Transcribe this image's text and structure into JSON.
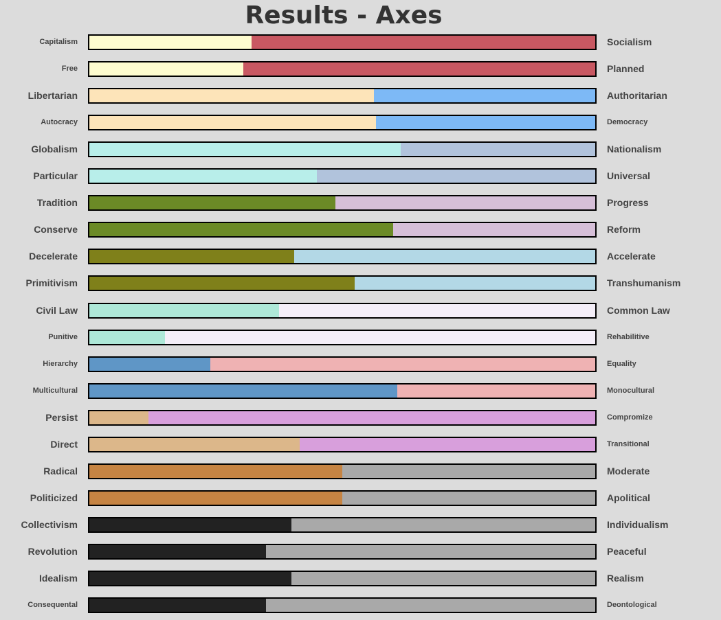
{
  "title": "Results - Axes",
  "chart_data": {
    "type": "bar",
    "orientation": "horizontal-stacked-100",
    "title": "Results - Axes",
    "axes": [
      {
        "left": "Capitalism",
        "right": "Socialism",
        "left_value": 0.32,
        "left_color": "#fefccf",
        "right_color": "#c85862"
      },
      {
        "left": "Free",
        "right": "Planned",
        "left_value": 0.305,
        "left_color": "#fefccf",
        "right_color": "#c85862"
      },
      {
        "left": "Libertarian",
        "right": "Authoritarian",
        "left_value": 0.563,
        "left_color": "#fde4b9",
        "right_color": "#7db9f6"
      },
      {
        "left": "Autocracy",
        "right": "Democracy",
        "left_value": 0.567,
        "left_color": "#fde4b9",
        "right_color": "#7db9f6"
      },
      {
        "left": "Globalism",
        "right": "Nationalism",
        "left_value": 0.615,
        "left_color": "#b8eeea",
        "right_color": "#b1c3dc"
      },
      {
        "left": "Particular",
        "right": "Universal",
        "left_value": 0.45,
        "left_color": "#b8eeea",
        "right_color": "#b1c3dc"
      },
      {
        "left": "Tradition",
        "right": "Progress",
        "left_value": 0.486,
        "left_color": "#6b8a26",
        "right_color": "#d6bfd8"
      },
      {
        "left": "Conserve",
        "right": "Reform",
        "left_value": 0.6,
        "left_color": "#6b8a26",
        "right_color": "#d6bfd8"
      },
      {
        "left": "Decelerate",
        "right": "Accelerate",
        "left_value": 0.405,
        "left_color": "#7f801a",
        "right_color": "#b3d8e6"
      },
      {
        "left": "Primitivism",
        "right": "Transhumanism",
        "left_value": 0.524,
        "left_color": "#7f801a",
        "right_color": "#b3d8e6"
      },
      {
        "left": "Civil Law",
        "right": "Common Law",
        "left_value": 0.375,
        "left_color": "#aee8d8",
        "right_color": "#f4eef8"
      },
      {
        "left": "Punitive",
        "right": "Rehabilitive",
        "left_value": 0.15,
        "left_color": "#aee8d8",
        "right_color": "#f4eef8"
      },
      {
        "left": "Hierarchy",
        "right": "Equality",
        "left_value": 0.239,
        "left_color": "#5f96c6",
        "right_color": "#efb2b3"
      },
      {
        "left": "Multicultural",
        "right": "Monocultural",
        "left_value": 0.609,
        "left_color": "#5f96c6",
        "right_color": "#efb2b3"
      },
      {
        "left": "Persist",
        "right": "Compromize",
        "left_value": 0.117,
        "left_color": "#dcb78a",
        "right_color": "#d89fdc"
      },
      {
        "left": "Direct",
        "right": "Transitional",
        "left_value": 0.416,
        "left_color": "#dcb78a",
        "right_color": "#d89fdc"
      },
      {
        "left": "Radical",
        "right": "Moderate",
        "left_value": 0.5,
        "left_color": "#c68443",
        "right_color": "#a9a9a9"
      },
      {
        "left": "Politicized",
        "right": "Apolitical",
        "left_value": 0.5,
        "left_color": "#c68443",
        "right_color": "#a9a9a9"
      },
      {
        "left": "Collectivism",
        "right": "Individualism",
        "left_value": 0.4,
        "left_color": "#222222",
        "right_color": "#a9a9a9"
      },
      {
        "left": "Revolution",
        "right": "Peaceful",
        "left_value": 0.349,
        "left_color": "#222222",
        "right_color": "#a9a9a9"
      },
      {
        "left": "Idealism",
        "right": "Realism",
        "left_value": 0.4,
        "left_color": "#222222",
        "right_color": "#a9a9a9"
      },
      {
        "left": "Consequental",
        "right": "Deontological",
        "left_value": 0.349,
        "left_color": "#222222",
        "right_color": "#a9a9a9"
      }
    ]
  }
}
